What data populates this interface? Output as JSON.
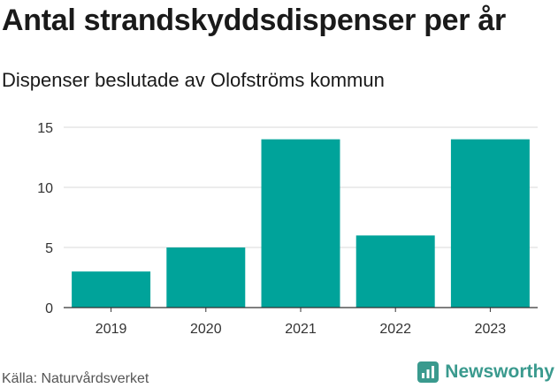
{
  "header": {
    "title": "Antal strandskyddsdispenser per år",
    "subtitle": "Dispenser beslutade av Olofströms kommun"
  },
  "footer": {
    "source": "Källa: Naturvårdsverket",
    "brand": "Newsworthy"
  },
  "colors": {
    "bar": "#00a39a",
    "brand": "#3a9a8e"
  },
  "chart_data": {
    "type": "bar",
    "title": "Antal strandskyddsdispenser per år",
    "subtitle": "Dispenser beslutade av Olofströms kommun",
    "categories": [
      "2019",
      "2020",
      "2021",
      "2022",
      "2023"
    ],
    "values": [
      3,
      5,
      14,
      6,
      14
    ],
    "xlabel": "",
    "ylabel": "",
    "ylim": [
      0,
      15
    ],
    "yticks": [
      0,
      5,
      10,
      15
    ],
    "grid": true,
    "legend": "none"
  }
}
